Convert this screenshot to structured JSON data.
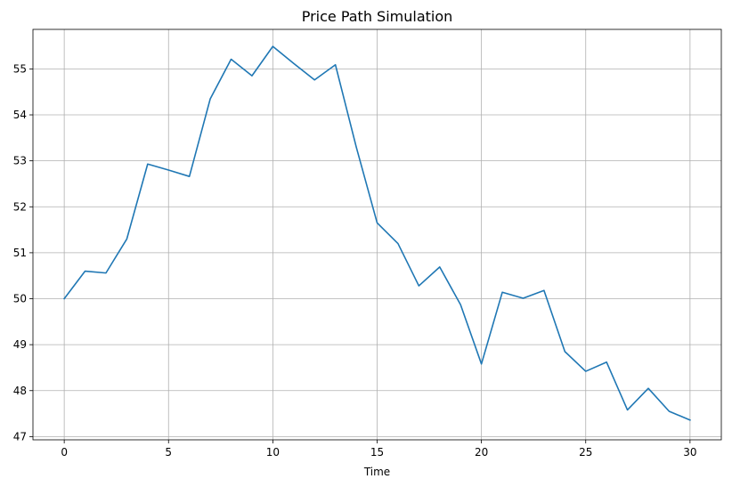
{
  "chart_data": {
    "type": "line",
    "title": "Price Path Simulation",
    "xlabel": "Time",
    "ylabel": "",
    "xlim": [
      -1.5,
      31.5
    ],
    "ylim": [
      46.93,
      55.86
    ],
    "xticks": [
      0,
      5,
      10,
      15,
      20,
      25,
      30
    ],
    "yticks": [
      47,
      48,
      49,
      50,
      51,
      52,
      53,
      54,
      55
    ],
    "grid": true,
    "legend": "none",
    "series": [
      {
        "color": "#1f77b4",
        "x": [
          0,
          1,
          2,
          3,
          4,
          5,
          6,
          7,
          8,
          9,
          10,
          11,
          12,
          13,
          14,
          15,
          16,
          17,
          18,
          19,
          20,
          21,
          22,
          23,
          24,
          25,
          26,
          27,
          28,
          29,
          30
        ],
        "values": [
          50.0,
          50.6,
          50.56,
          51.3,
          52.93,
          52.8,
          52.66,
          54.35,
          55.21,
          54.85,
          55.49,
          55.12,
          54.76,
          55.09,
          53.3,
          51.65,
          51.2,
          50.28,
          50.69,
          49.87,
          48.58,
          50.14,
          50.01,
          50.18,
          48.85,
          48.42,
          48.62,
          47.58,
          48.05,
          47.55,
          47.36
        ]
      }
    ]
  }
}
